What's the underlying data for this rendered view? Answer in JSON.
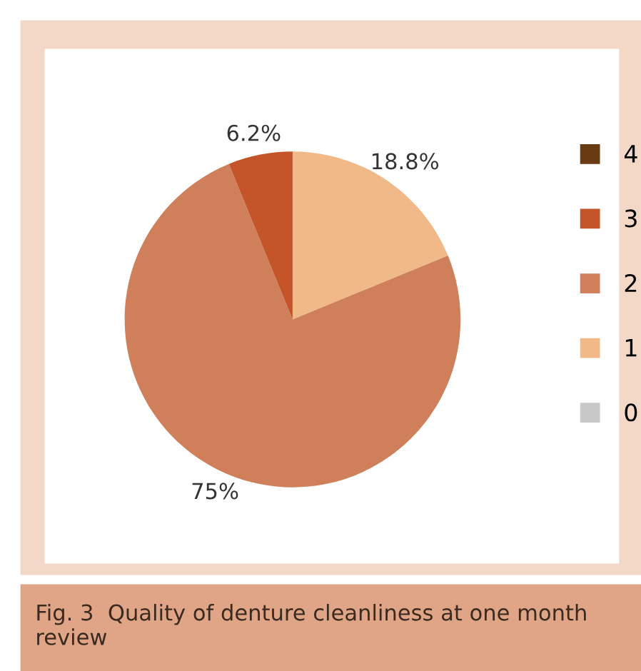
{
  "chart_data": {
    "type": "pie",
    "categories": [
      "0",
      "1",
      "2",
      "3",
      "4"
    ],
    "values": [
      0,
      18.8,
      75,
      6.2,
      0
    ],
    "colors": [
      "#c8c8c8",
      "#f0b987",
      "#cf805b",
      "#c4552b",
      "#6a3a12"
    ],
    "value_labels": [
      null,
      "18.8%",
      "75%",
      "6.2%",
      null
    ],
    "legend": "right",
    "annotations": [
      "Fig. 3  Quality of denture cleanliness at one month review"
    ]
  }
}
